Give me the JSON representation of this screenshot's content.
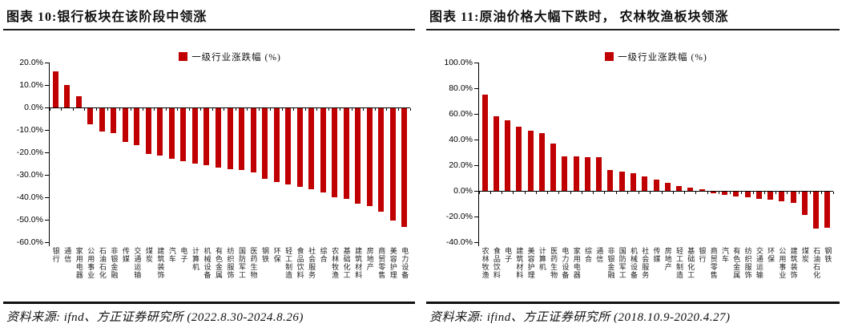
{
  "page": {
    "background": "#ffffff"
  },
  "chart_data": [
    {
      "type": "bar",
      "title": "图表 10:银行板块在该阶段中领涨",
      "legend": "一级行业涨跌幅 (%)",
      "source": "资料来源: ifnd、方正证券研究所 (2022.8.30-2024.8.26)",
      "bar_color": "#c00000",
      "grid": false,
      "legend_position": "top-center",
      "ylim": [
        -60,
        20
      ],
      "yticks": [
        20,
        10,
        0,
        -10,
        -20,
        -30,
        -40,
        -50,
        -60
      ],
      "ytick_labels": [
        "20.0%",
        "10.0%",
        "0.0%",
        "-10.0%",
        "-20.0%",
        "-30.0%",
        "-40.0%",
        "-50.0%",
        "-60.0%"
      ],
      "categories": [
        "银行",
        "通信",
        "家用电器",
        "公用事业",
        "石油石化",
        "非银金融",
        "传媒",
        "交通运输",
        "煤炭",
        "建筑装饰",
        "汽车",
        "电子",
        "计算机",
        "机械设备",
        "有色金属",
        "纺织服饰",
        "国防军工",
        "医药生物",
        "钢铁",
        "环保",
        "轻工制造",
        "食品饮料",
        "社会服务",
        "综合",
        "农林牧渔",
        "基础化工",
        "建筑材料",
        "房地产",
        "商贸零售",
        "美容护理",
        "电力设备"
      ],
      "values": [
        16,
        10,
        5,
        -7,
        -10.5,
        -11,
        -15,
        -16.5,
        -20.5,
        -21,
        -22.5,
        -23.5,
        -24.5,
        -25.5,
        -26.5,
        -27,
        -27.5,
        -28.5,
        -31.5,
        -33,
        -34,
        -35,
        -36,
        -37.5,
        -39.5,
        -40.5,
        -42.5,
        -43.5,
        -46,
        -50,
        -53
      ]
    },
    {
      "type": "bar",
      "title": "图表 11:原油价格大幅下跌时， 农林牧渔板块领涨",
      "legend": "一级行业涨跌幅 (%)",
      "source": "资料来源: ifind、方正证券研究所 (2018.10.9-2020.4.27)",
      "bar_color": "#c00000",
      "grid": false,
      "legend_position": "top-center",
      "ylim": [
        -40,
        100
      ],
      "yticks": [
        100,
        80,
        60,
        40,
        20,
        0,
        -20,
        -40
      ],
      "ytick_labels": [
        "100.0%",
        "80.0%",
        "60.0%",
        "40.0%",
        "20.0%",
        "0.0%",
        "-20.0%",
        "-40.0%"
      ],
      "categories": [
        "农林牧渔",
        "食品饮料",
        "电子",
        "建筑材料",
        "美容护理",
        "计算机",
        "医药生物",
        "电力设备",
        "家用电器",
        "综合",
        "通信",
        "非银金融",
        "国防军工",
        "机械设备",
        "社会服务",
        "传媒",
        "房地产",
        "轻工制造",
        "基础化工",
        "银行",
        "商贸零售",
        "汽车",
        "有色金属",
        "纺织服饰",
        "交通运输",
        "环保",
        "公用事业",
        "建筑装饰",
        "煤炭",
        "石油石化",
        "钢铁"
      ],
      "values": [
        75,
        58,
        55,
        50,
        47,
        45,
        37,
        27,
        27,
        26,
        26,
        16,
        15,
        14,
        11,
        9,
        6.5,
        4,
        2.5,
        1,
        -1.5,
        -2.5,
        -3.5,
        -4.5,
        -5.5,
        -6.5,
        -7.5,
        -9,
        -18,
        -28.5,
        -28
      ]
    }
  ]
}
